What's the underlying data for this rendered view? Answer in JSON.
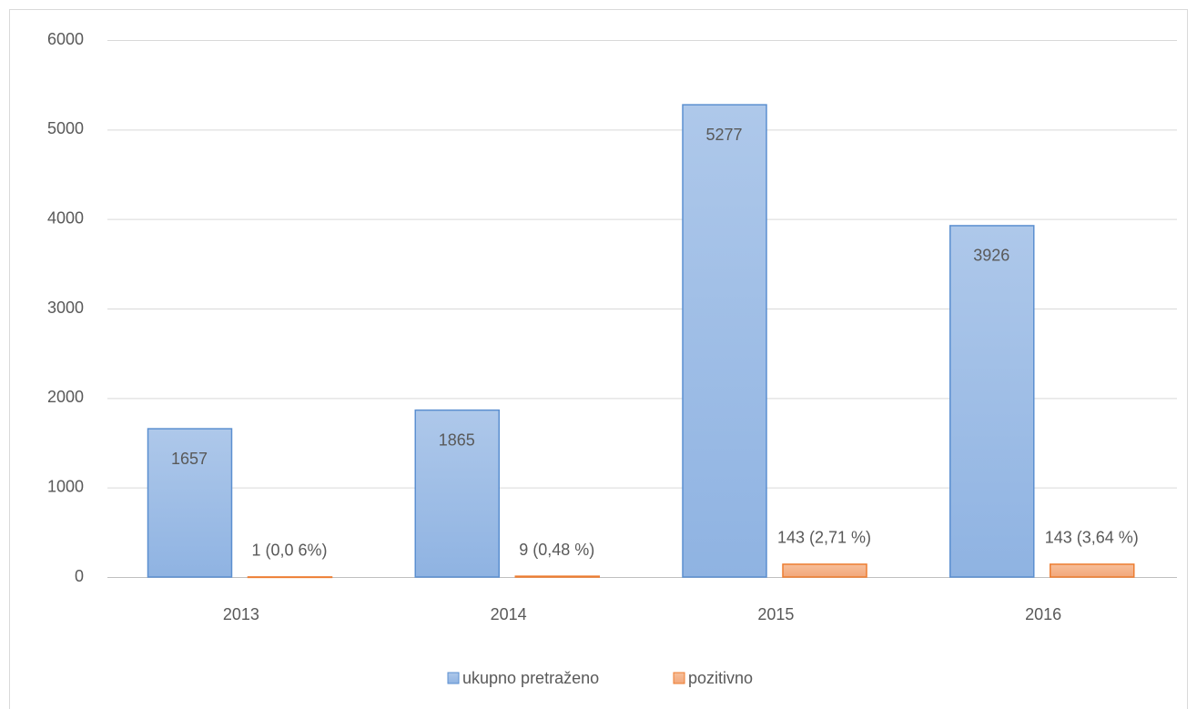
{
  "chart_data": {
    "type": "bar",
    "categories": [
      "2013",
      "2014",
      "2015",
      "2016"
    ],
    "series": [
      {
        "name": "ukupno pretraženo",
        "color": "#9bbbe6",
        "values": [
          1657,
          1865,
          5277,
          3926
        ]
      },
      {
        "name": "pozitivno",
        "color": "#f4b183",
        "values": [
          1,
          9,
          143,
          143
        ],
        "value_labels": [
          "1 (0,0 6%)",
          "9 (0,48 %)",
          "143 (2,71 %)",
          "143 (3,64 %)"
        ]
      }
    ],
    "ylim": [
      0,
      6000
    ],
    "yticks": [
      0,
      1000,
      2000,
      3000,
      4000,
      5000,
      6000
    ],
    "grid": true,
    "legend": "bottom"
  }
}
